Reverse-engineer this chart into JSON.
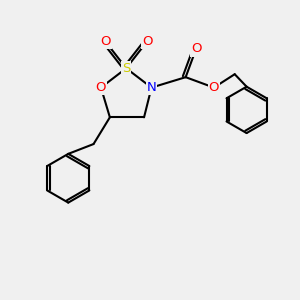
{
  "bg_color": "#f0f0f0",
  "bond_color": "#000000",
  "atom_colors": {
    "O": "#ff0000",
    "S": "#cccc00",
    "N": "#0000ff",
    "C": "#000000"
  },
  "line_width": 1.5,
  "figsize": [
    3.0,
    3.0
  ],
  "dpi": 100
}
